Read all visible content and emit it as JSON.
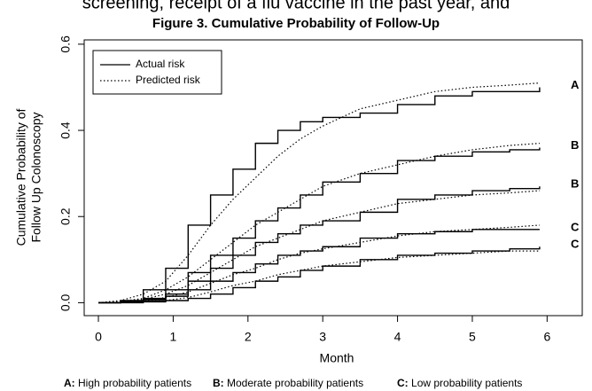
{
  "caption_above": "screening, receipt of a flu vaccine in the past year, and",
  "chart_data": {
    "type": "line",
    "title": "Figure 3. Cumulative Probability of Follow-Up",
    "x_label": "Month",
    "y_label": [
      "Cumulative Probability of",
      "Follow Up Colonoscopy"
    ],
    "x": [
      0,
      0.3,
      0.6,
      0.9,
      1.2,
      1.5,
      1.8,
      2.1,
      2.4,
      2.7,
      3,
      3.5,
      4,
      4.5,
      5,
      5.5,
      5.9
    ],
    "xlim": [
      -0.19,
      6.47
    ],
    "xticks": [
      0,
      1,
      2,
      3,
      4,
      5,
      6
    ],
    "ylim": [
      -0.03,
      0.61
    ],
    "yticks": [
      {
        "value": 0,
        "label": "0.0"
      },
      0.2,
      0.4,
      0.6
    ],
    "color": "#000000",
    "legend": [
      {
        "name": "Actual risk",
        "dash": "solid"
      },
      {
        "name": "Predicted risk",
        "dash": "dotted"
      }
    ],
    "series": [
      {
        "label": "A",
        "dash": "solid",
        "values": [
          0,
          0.005,
          0.03,
          0.08,
          0.18,
          0.25,
          0.31,
          0.37,
          0.4,
          0.42,
          0.43,
          0.44,
          0.46,
          0.48,
          0.49,
          0.49,
          0.5
        ]
      },
      {
        "dash": "dotted",
        "values": [
          0,
          0.005,
          0.02,
          0.05,
          0.11,
          0.18,
          0.24,
          0.29,
          0.34,
          0.38,
          0.41,
          0.45,
          0.47,
          0.49,
          0.5,
          0.505,
          0.51
        ]
      },
      {
        "label": "B",
        "dash": "solid",
        "values": [
          0,
          0.003,
          0.01,
          0.03,
          0.07,
          0.11,
          0.15,
          0.19,
          0.22,
          0.25,
          0.28,
          0.3,
          0.33,
          0.34,
          0.35,
          0.355,
          0.36
        ]
      },
      {
        "dash": "dotted",
        "values": [
          0,
          0.003,
          0.01,
          0.03,
          0.06,
          0.1,
          0.14,
          0.18,
          0.21,
          0.24,
          0.27,
          0.3,
          0.32,
          0.34,
          0.355,
          0.365,
          0.37
        ]
      },
      {
        "label": "B",
        "dash": "solid",
        "values": [
          0,
          0.002,
          0.008,
          0.02,
          0.05,
          0.08,
          0.11,
          0.14,
          0.16,
          0.18,
          0.19,
          0.21,
          0.24,
          0.25,
          0.26,
          0.265,
          0.27
        ]
      },
      {
        "dash": "dotted",
        "values": [
          0,
          0.002,
          0.008,
          0.02,
          0.04,
          0.07,
          0.1,
          0.13,
          0.15,
          0.17,
          0.19,
          0.21,
          0.23,
          0.24,
          0.25,
          0.255,
          0.26
        ]
      },
      {
        "label": "C",
        "dash": "solid",
        "values": [
          0,
          0.002,
          0.005,
          0.015,
          0.03,
          0.05,
          0.07,
          0.09,
          0.11,
          0.12,
          0.13,
          0.15,
          0.16,
          0.165,
          0.17,
          0.17,
          0.17
        ]
      },
      {
        "dash": "dotted",
        "values": [
          0,
          0.002,
          0.005,
          0.012,
          0.025,
          0.045,
          0.065,
          0.08,
          0.1,
          0.115,
          0.125,
          0.14,
          0.155,
          0.165,
          0.17,
          0.175,
          0.18
        ]
      },
      {
        "label": "C",
        "dash": "solid",
        "values": [
          0,
          0,
          0.002,
          0.005,
          0.01,
          0.02,
          0.035,
          0.05,
          0.06,
          0.075,
          0.085,
          0.1,
          0.11,
          0.115,
          0.12,
          0.125,
          0.13
        ]
      },
      {
        "dash": "dotted",
        "values": [
          0,
          0,
          0.002,
          0.005,
          0.012,
          0.025,
          0.04,
          0.05,
          0.065,
          0.075,
          0.085,
          0.095,
          0.105,
          0.11,
          0.115,
          0.12,
          0.12
        ]
      }
    ],
    "notes": [
      {
        "key": "A:",
        "text": "High probability patients"
      },
      {
        "key": "B:",
        "text": "Moderate probability patients"
      },
      {
        "key": "C:",
        "text": "Low probability patients"
      }
    ]
  }
}
